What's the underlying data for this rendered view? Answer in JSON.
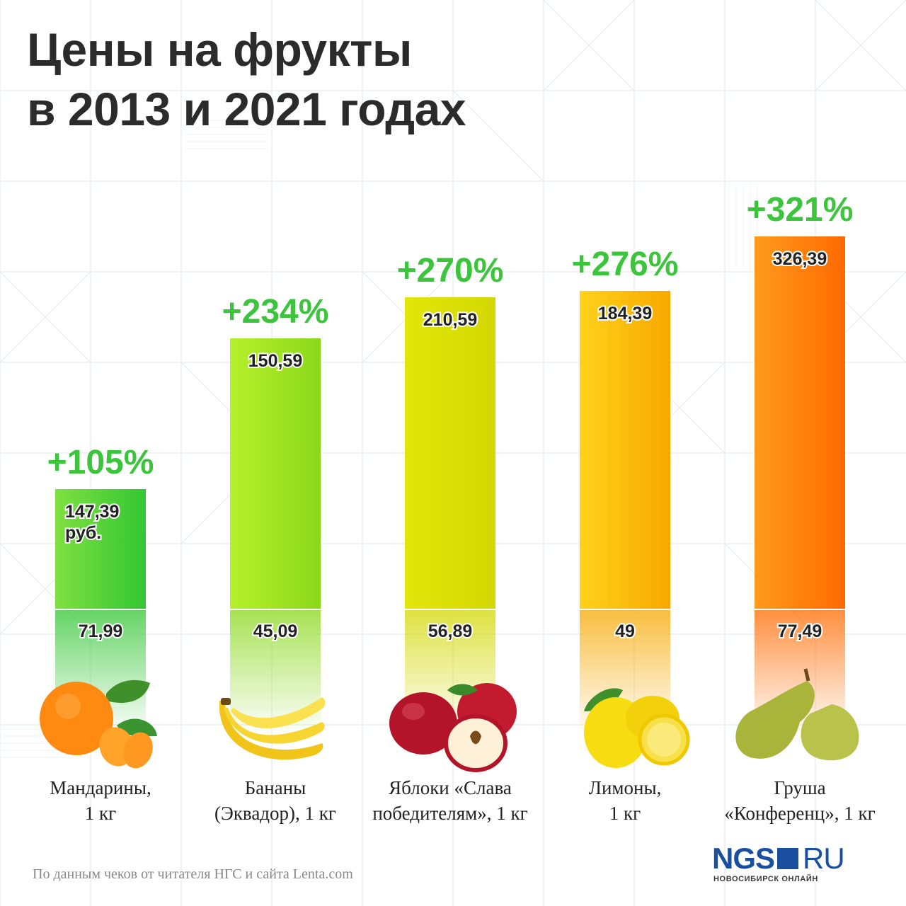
{
  "title_lines": [
    "Цены на фрукты",
    "в 2013 и 2021 годах"
  ],
  "chart_data": {
    "type": "bar",
    "title": "Цены на фрукты в 2013 и 2021 годах",
    "categories": [
      [
        "Мандарины,",
        "1 кг"
      ],
      [
        "Бананы",
        "(Эквадор), 1 кг"
      ],
      [
        "Яблоки «Слава",
        "победителям», 1 кг"
      ],
      [
        "Лимоны,",
        "1 кг"
      ],
      [
        "Груша",
        "«Конференц», 1 кг"
      ]
    ],
    "series": [
      {
        "values": [
          71.99,
          45.09,
          56.89,
          49,
          77.49
        ],
        "labels": [
          "71,99",
          "45,09",
          "56,89",
          "49",
          "77,49"
        ]
      },
      {
        "values": [
          147.39,
          150.59,
          210.59,
          184.39,
          326.39
        ],
        "labels": [
          "147,39",
          "150,59",
          "210,59",
          "184,39",
          "326,39"
        ]
      }
    ],
    "first_value_unit": "руб.",
    "change_labels": [
      "+105%",
      "+234%",
      "+270%",
      "+276%",
      "+321%"
    ],
    "bar_colors": [
      [
        "#7fe040",
        "#33c633"
      ],
      [
        "#b6f02a",
        "#8ad81a"
      ],
      [
        "#e3e60a",
        "#d2d800"
      ],
      [
        "#ffd21a",
        "#f7a800"
      ],
      [
        "#ff9a1c",
        "#ff6a00"
      ]
    ],
    "fruit_icons": [
      "mandarin-icon",
      "banana-icon",
      "apple-icon",
      "lemon-icon",
      "pear-icon"
    ]
  },
  "colors": {
    "change": "#3cc43c",
    "title": "#2b2b2b"
  },
  "source": "По данным чеков от читателя НГС и сайта Lenta.com",
  "logo": {
    "brand": "NGS",
    "domain": "RU",
    "tagline": "НОВОСИБИРСК ОНЛАЙН"
  }
}
